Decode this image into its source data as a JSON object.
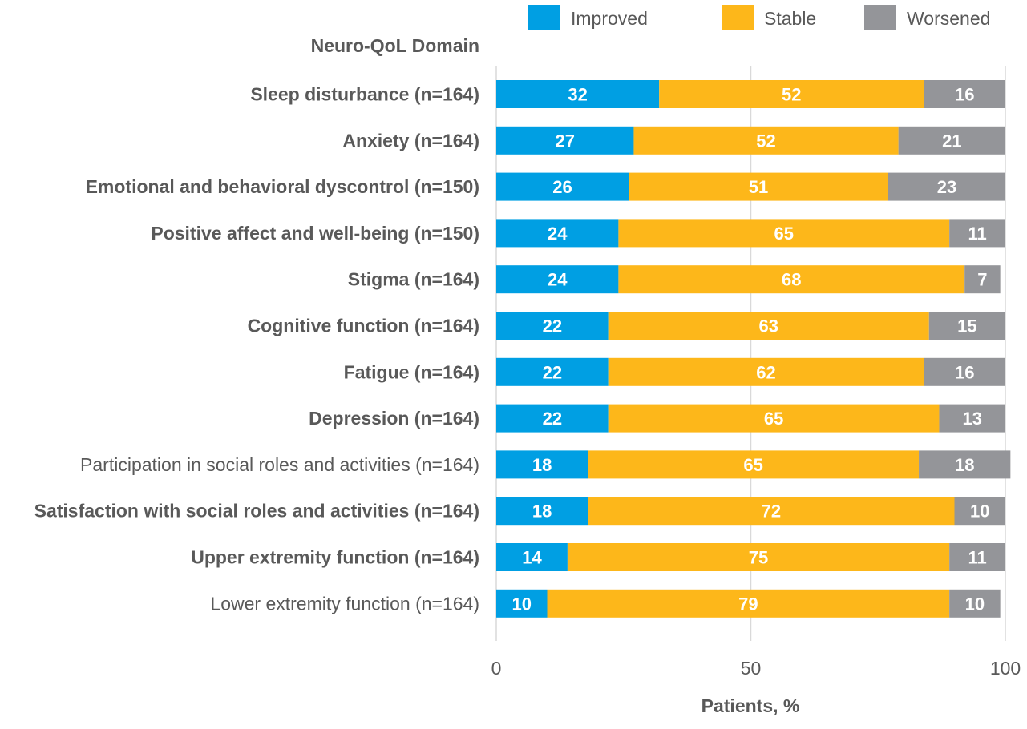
{
  "chart_data": {
    "type": "bar",
    "orientation": "horizontal",
    "stacked": true,
    "category_header": "Neuro-QoL Domain",
    "xlabel": "Patients, %",
    "xlim": [
      0,
      100
    ],
    "xticks": [
      "0",
      "50",
      "100"
    ],
    "grid": true,
    "legend_position": "top-right",
    "categories": [
      "Sleep disturbance (n=164)",
      "Anxiety (n=164)",
      "Emotional and behavioral dyscontrol (n=150)",
      "Positive affect and well-being (n=150)",
      "Stigma (n=164)",
      "Cognitive function (n=164)",
      "Fatigue (n=164)",
      "Depression (n=164)",
      "Participation in social roles and activities (n=164)",
      "Satisfaction with social roles and activities (n=164)",
      "Upper extremity function (n=164)",
      "Lower extremity function (n=164)"
    ],
    "category_bold": [
      true,
      true,
      true,
      true,
      true,
      true,
      true,
      true,
      false,
      true,
      true,
      false
    ],
    "series": [
      {
        "name": "Improved",
        "color": "#009fe3",
        "values": [
          32,
          27,
          26,
          24,
          24,
          22,
          22,
          22,
          18,
          18,
          14,
          10
        ]
      },
      {
        "name": "Stable",
        "color": "#fdb71a",
        "values": [
          52,
          52,
          51,
          65,
          68,
          63,
          62,
          65,
          65,
          72,
          75,
          79
        ]
      },
      {
        "name": "Worsened",
        "color": "#949599",
        "values": [
          16,
          21,
          23,
          11,
          7,
          15,
          16,
          13,
          18,
          10,
          11,
          10
        ]
      }
    ]
  }
}
